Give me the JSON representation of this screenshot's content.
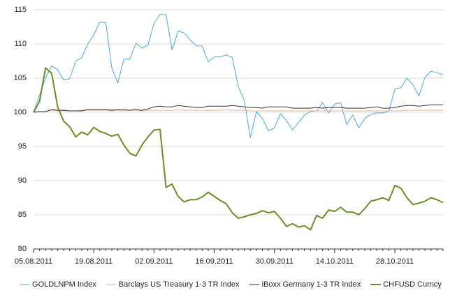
{
  "chart_data": {
    "type": "line",
    "categories": [
      "05.08.2011",
      null,
      null,
      null,
      null,
      null,
      null,
      null,
      null,
      null,
      "19.08.2011",
      null,
      null,
      null,
      null,
      null,
      null,
      null,
      null,
      null,
      "02.09.2011",
      null,
      null,
      null,
      null,
      null,
      null,
      null,
      null,
      null,
      "16.09.2011",
      null,
      null,
      null,
      null,
      null,
      null,
      null,
      null,
      null,
      "30.09.2011",
      null,
      null,
      null,
      null,
      null,
      null,
      null,
      null,
      null,
      "14.10.2011",
      null,
      null,
      null,
      null,
      null,
      null,
      null,
      null,
      null,
      "28.10.2011",
      null,
      null,
      null,
      null,
      null,
      null,
      null,
      null
    ],
    "series": [
      {
        "name": "GOLDLNPM Index",
        "color": "#4da6dd",
        "width": 1,
        "values": [
          100,
          102.5,
          105,
          106.8,
          106.2,
          104.7,
          104.9,
          107.5,
          108,
          110,
          111.3,
          113.2,
          113.1,
          106.5,
          104.3,
          107.8,
          107.8,
          110.1,
          109.4,
          109.8,
          113,
          114.3,
          114.3,
          109.1,
          111.9,
          111.6,
          110.6,
          109.7,
          109.7,
          107.4,
          108.1,
          108.1,
          108.4,
          108,
          103.8,
          101.7,
          96.3,
          100.1,
          99.1,
          97.3,
          97.7,
          99.8,
          98.8,
          97.4,
          98.5,
          99.6,
          100.1,
          100.2,
          101.4,
          99.9,
          101.2,
          101.4,
          98.2,
          99.6,
          97.7,
          99.1,
          99.7,
          99.9,
          99.9,
          100.2,
          103.4,
          103.6,
          105,
          104,
          102.4,
          105.1,
          106,
          105.8,
          105.5
        ]
      },
      {
        "name": "Barclays US Treasury 1-3 TR Index",
        "color": "#e5b49c",
        "width": 1,
        "values": [
          100,
          100.1,
          100.1,
          100.3,
          100.2,
          100.2,
          100.2,
          100.2,
          100.3,
          100.3,
          100.3,
          100.3,
          100.3,
          100.2,
          100.3,
          100.2,
          100.3,
          100.3,
          100.2,
          100.3,
          100.3,
          100.3,
          100.3,
          100.3,
          100.4,
          100.3,
          100.3,
          100.3,
          100.3,
          100.3,
          100.3,
          100.3,
          100.4,
          100.3,
          100.3,
          100.3,
          100.2,
          100.2,
          100.2,
          100.2,
          100.2,
          100.2,
          100.2,
          100.2,
          100.2,
          100.2,
          100.2,
          100.2,
          100.2,
          100.2,
          100.2,
          100.2,
          100.2,
          100.2,
          100.2,
          100.2,
          100.2,
          100.2,
          100.2,
          100.2,
          100.2,
          100.2,
          100.3,
          100.3,
          100.3,
          100.3,
          100.3,
          100.3,
          100.3
        ]
      },
      {
        "name": "iBoxx Germany 1-3 TR Index",
        "color": "#333333",
        "width": 1,
        "values": [
          100,
          100.1,
          100.1,
          100.4,
          100.3,
          100.3,
          100.2,
          100.2,
          100.2,
          100.4,
          100.4,
          100.4,
          100.4,
          100.3,
          100.4,
          100.4,
          100.3,
          100.4,
          100.3,
          100.5,
          100.8,
          100.9,
          100.8,
          100.8,
          101,
          100.9,
          100.8,
          100.7,
          100.7,
          100.9,
          100.9,
          100.9,
          100.9,
          101,
          100.9,
          100.8,
          100.7,
          100.7,
          100.6,
          100.8,
          100.8,
          100.8,
          100.8,
          100.6,
          100.6,
          100.6,
          100.6,
          100.7,
          100.6,
          100.7,
          100.7,
          100.7,
          100.6,
          100.6,
          100.6,
          100.6,
          100.7,
          100.8,
          100.6,
          100.6,
          100.7,
          100.9,
          101,
          101,
          100.9,
          101,
          101.1,
          101.1,
          101.1
        ]
      },
      {
        "name": "CHFUSD Curncy",
        "color": "#6b8e23",
        "width": 2,
        "values": [
          100,
          101.6,
          106.5,
          105.7,
          100.8,
          98.7,
          97.9,
          96.4,
          97.1,
          96.7,
          97.8,
          97.2,
          96.9,
          96.5,
          96.8,
          95.2,
          94,
          93.6,
          95.2,
          96.4,
          97.4,
          97.5,
          89,
          89.5,
          87.7,
          86.9,
          87.2,
          87.2,
          87.6,
          88.3,
          87.7,
          87.1,
          86.6,
          85.3,
          84.5,
          84.7,
          85,
          85.2,
          85.6,
          85.3,
          85.5,
          84.5,
          83.3,
          83.7,
          83.2,
          83.4,
          82.8,
          84.9,
          84.5,
          85.7,
          85.5,
          86.1,
          85.4,
          85.4,
          85,
          85.9,
          87,
          87.2,
          87.5,
          87.1,
          89.3,
          88.9,
          87.5,
          86.5,
          86.7,
          87,
          87.5,
          87.2,
          86.8
        ]
      }
    ],
    "ylim": [
      80,
      115
    ],
    "yticks": [
      80,
      85,
      90,
      95,
      100,
      105,
      110,
      115
    ],
    "grid": true,
    "legend": "bottom"
  }
}
